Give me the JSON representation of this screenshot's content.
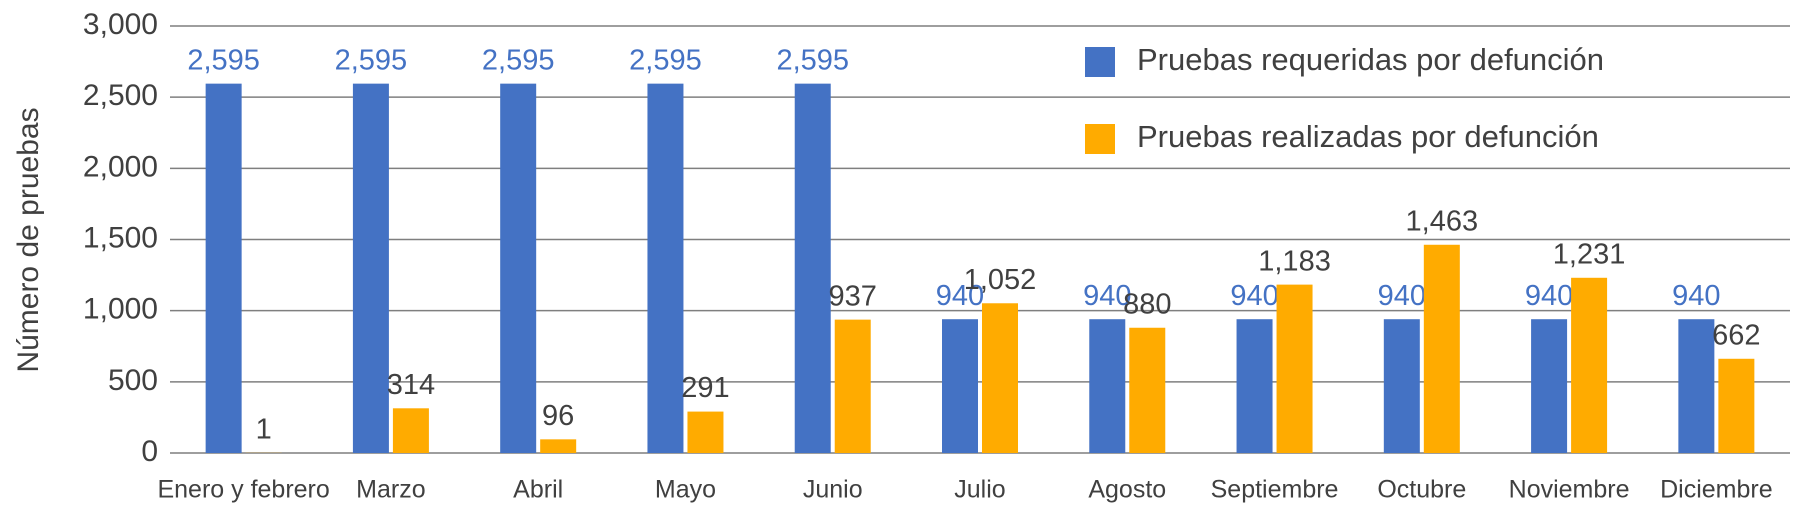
{
  "chart_data": {
    "type": "bar",
    "y_label": "Número de pruebas",
    "categories": [
      "Enero y febrero",
      "Marzo",
      "Abril",
      "Mayo",
      "Junio",
      "Julio",
      "Agosto",
      "Septiembre",
      "Octubre",
      "Noviembre",
      "Diciembre"
    ],
    "series": [
      {
        "name": "Pruebas requeridas por defunción",
        "color": "#4472c4",
        "label_color": "#4472c4",
        "values": [
          2595,
          2595,
          2595,
          2595,
          2595,
          940,
          940,
          940,
          940,
          940,
          940
        ],
        "value_labels": [
          "2,595",
          "2,595",
          "2,595",
          "2,595",
          "2,595",
          "940",
          "940",
          "940",
          "940",
          "940",
          "940"
        ]
      },
      {
        "name": "Pruebas realizadas por defunción",
        "color": "#ffab00",
        "label_color": "#404040",
        "values": [
          1,
          314,
          96,
          291,
          937,
          1052,
          880,
          1183,
          1463,
          1231,
          662
        ],
        "value_labels": [
          "1",
          "314",
          "96",
          "291",
          "937",
          "1,052",
          "880",
          "1,183",
          "1,463",
          "1,231",
          "662"
        ]
      }
    ],
    "ylim": [
      0,
      3000
    ],
    "yticks": [
      0,
      500,
      {
        "value": 1000,
        "label": "1,000"
      },
      {
        "value": 1500,
        "label": "1,500"
      },
      {
        "value": 2000,
        "label": "2,000"
      },
      {
        "value": 2500,
        "label": "2,500"
      },
      {
        "value": 3000,
        "label": "3,000"
      }
    ],
    "grid": true,
    "legend": "top-right"
  }
}
